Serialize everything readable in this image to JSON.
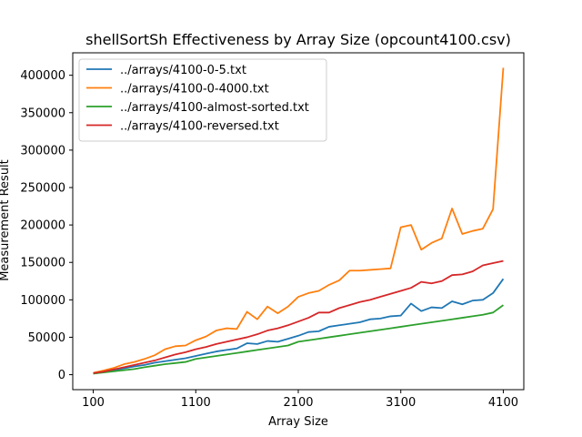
{
  "chart_data": {
    "type": "line",
    "title": "shellSortSh Effectiveness by Array Size (opcount4100.csv)",
    "xlabel": "Array Size",
    "ylabel": "Measurement Result",
    "xlim": [
      -100,
      4300
    ],
    "ylim": [
      -20000,
      430000
    ],
    "x_ticks": [
      100,
      1100,
      2100,
      3100,
      4100
    ],
    "y_ticks": [
      0,
      50000,
      100000,
      150000,
      200000,
      250000,
      300000,
      350000,
      400000
    ],
    "legend_position": "upper-left",
    "grid": false,
    "x": [
      100,
      200,
      300,
      400,
      500,
      600,
      700,
      800,
      900,
      1000,
      1100,
      1200,
      1300,
      1400,
      1500,
      1600,
      1700,
      1800,
      1900,
      2000,
      2100,
      2200,
      2300,
      2400,
      2500,
      2600,
      2700,
      2800,
      2900,
      3000,
      3100,
      3200,
      3300,
      3400,
      3500,
      3600,
      3700,
      3800,
      3900,
      4000,
      4100
    ],
    "series": [
      {
        "name": "../arrays/4100-0-5.txt",
        "color": "#1f77b4",
        "values": [
          1500,
          3500,
          6000,
          8500,
          11000,
          13000,
          16000,
          18000,
          20000,
          22000,
          25000,
          28000,
          31000,
          33000,
          35000,
          42000,
          41000,
          45000,
          44000,
          48000,
          52000,
          57000,
          58000,
          64000,
          66000,
          68000,
          70000,
          74000,
          75000,
          78000,
          79000,
          95000,
          85000,
          90000,
          89000,
          98000,
          94000,
          99000,
          100000,
          109000,
          128000
        ]
      },
      {
        "name": "../arrays/4100-0-4000.txt",
        "color": "#ff7f0e",
        "values": [
          2500,
          5500,
          9000,
          14000,
          17000,
          21000,
          26000,
          34000,
          38000,
          39000,
          46000,
          51000,
          59000,
          62000,
          61000,
          84000,
          74000,
          91000,
          82000,
          91000,
          104000,
          109000,
          112000,
          120000,
          126000,
          139000,
          139000,
          140000,
          141000,
          142000,
          197000,
          200000,
          167000,
          176000,
          182000,
          222000,
          188000,
          192000,
          195000,
          221000,
          410000
        ]
      },
      {
        "name": "../arrays/4100-almost-sorted.txt",
        "color": "#2ca02c",
        "values": [
          1500,
          3000,
          4500,
          6000,
          7500,
          10000,
          12000,
          14000,
          15500,
          17000,
          21000,
          23000,
          25000,
          27000,
          29000,
          31000,
          33000,
          35000,
          37000,
          39000,
          44000,
          46000,
          48000,
          50000,
          52000,
          54000,
          56000,
          58000,
          60000,
          62000,
          64000,
          66000,
          68000,
          70000,
          72000,
          74000,
          76000,
          78000,
          80000,
          83000,
          93000
        ]
      },
      {
        "name": "../arrays/4100-reversed.txt",
        "color": "#d62728",
        "values": [
          2000,
          4000,
          7000,
          10000,
          13000,
          16000,
          19000,
          23000,
          27000,
          30000,
          34000,
          37000,
          41000,
          44000,
          47000,
          50000,
          54000,
          59000,
          62000,
          66000,
          71000,
          76000,
          83000,
          83000,
          89000,
          93000,
          97000,
          100000,
          104000,
          108000,
          112000,
          116000,
          124000,
          122000,
          125000,
          133000,
          134000,
          138000,
          146000,
          149000,
          152000
        ]
      }
    ]
  }
}
